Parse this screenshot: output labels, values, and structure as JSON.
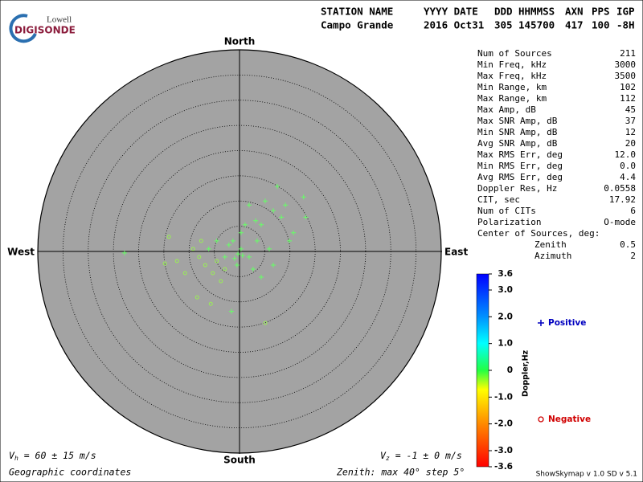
{
  "logo": {
    "top": "Lowell",
    "bottom": "DIGISONDE"
  },
  "header": {
    "labels": [
      "STATION NAME",
      "YYYY DATE",
      "DDD",
      "HHMMSS",
      "AXN",
      "PPS",
      "IGP"
    ],
    "values": [
      "Campo Grande",
      "2016 Oct31",
      "305",
      "145700",
      "417",
      "100",
      "-8H"
    ]
  },
  "params": {
    "rows": [
      [
        "Num of Sources",
        "211"
      ],
      [
        "Min Freq, kHz",
        "3000"
      ],
      [
        "Max Freq, kHz",
        "3500"
      ],
      [
        "Min Range, km",
        "102"
      ],
      [
        "Max Range, km",
        "112"
      ],
      [
        "Max Amp, dB",
        "45"
      ],
      [
        "Max SNR Amp, dB",
        "37"
      ],
      [
        "Min SNR Amp, dB",
        "12"
      ],
      [
        "Avg SNR Amp, dB",
        "20"
      ],
      [
        "Max RMS Err, deg",
        "12.0"
      ],
      [
        "Min RMS Err, deg",
        "0.0"
      ],
      [
        "Avg RMS Err, deg",
        "4.4"
      ],
      [
        "Doppler Res, Hz",
        "0.0558"
      ],
      [
        "CIT, sec",
        "17.92"
      ],
      [
        "Num of CITs",
        "6"
      ],
      [
        "Polarization",
        "O-mode"
      ]
    ],
    "center_title": "Center of Sources, deg:",
    "center_rows": [
      [
        "Zenith",
        "0.5"
      ],
      [
        "Azimuth",
        "2"
      ]
    ]
  },
  "chart_data": {
    "type": "skymap",
    "directions": {
      "north": "North",
      "south": "South",
      "east": "East",
      "west": "West"
    },
    "rlim": [
      0,
      40
    ],
    "rticks": [
      5,
      10,
      15,
      20,
      25,
      30,
      35,
      40
    ],
    "series": [
      {
        "name": "Positive",
        "marker": "plus",
        "color": "#0000c0",
        "point_color": "#66ff66",
        "x": [
          5.1,
          7.5,
          12.7,
          13.1,
          10.7,
          6.7,
          4.3,
          -1.3,
          0.3,
          -1.6,
          -22.8,
          0.3,
          1.9,
          3.5,
          -2.9,
          -0.5,
          1.1,
          3.2,
          8.3,
          9.9,
          5.9,
          -4.5,
          -6.1,
          -2.1,
          -0.3,
          0.6,
          -1.0,
          2.7,
          6.7,
          4.3,
          9.1,
          1.9
        ],
        "y": [
          10.0,
          12.9,
          10.8,
          6.8,
          3.7,
          -2.7,
          -5.1,
          2.1,
          0.5,
          -11.9,
          -0.3,
          3.7,
          -1.1,
          2.1,
          -1.1,
          -2.7,
          5.3,
          6.1,
          6.8,
          2.1,
          0.5,
          2.1,
          0.5,
          1.3,
          -0.5,
          -0.8,
          -1.4,
          -3.5,
          8.1,
          5.3,
          9.2,
          9.2
        ]
      },
      {
        "name": "Negative",
        "marker": "circle",
        "color": "#d00000",
        "point_color": "#99ee55",
        "x": [
          -14.0,
          -14.8,
          -10.8,
          -8.4,
          -5.7,
          5.1,
          -9.2,
          -6.8,
          -5.3,
          -3.7,
          -7.6,
          -12.4,
          -2.9,
          -4.5,
          -8.0
        ],
        "y": [
          2.9,
          -2.4,
          -4.3,
          -9.1,
          -10.4,
          -14.2,
          0.5,
          -2.7,
          -4.3,
          -5.9,
          2.1,
          -1.9,
          -3.5,
          -1.9,
          -1.1
        ]
      }
    ],
    "colorbar": {
      "label": "Doppler,Hz",
      "lim": [
        -3.6,
        3.6
      ],
      "ticks": [
        3.6,
        {
          "value": 3,
          "label": "3.0"
        },
        {
          "value": 2,
          "label": "2.0"
        },
        {
          "value": 1,
          "label": "1.0"
        },
        0,
        {
          "value": -1,
          "label": "-1.0"
        },
        {
          "value": -2,
          "label": "-2.0"
        },
        {
          "value": -3,
          "label": "-3.0"
        },
        -3.6
      ]
    },
    "vh": {
      "symbol": "V",
      "subscript": "h",
      "text": " = 60 ± 15 m/s"
    },
    "vz": {
      "symbol": "V",
      "subscript": "z",
      "text": " = -1 ± 0 m/s"
    },
    "coords": "Geographic coordinates",
    "zenith_note": "Zenith: max 40°  step 5°",
    "version": "ShowSkymap v 1.0  SD v 5.1"
  }
}
